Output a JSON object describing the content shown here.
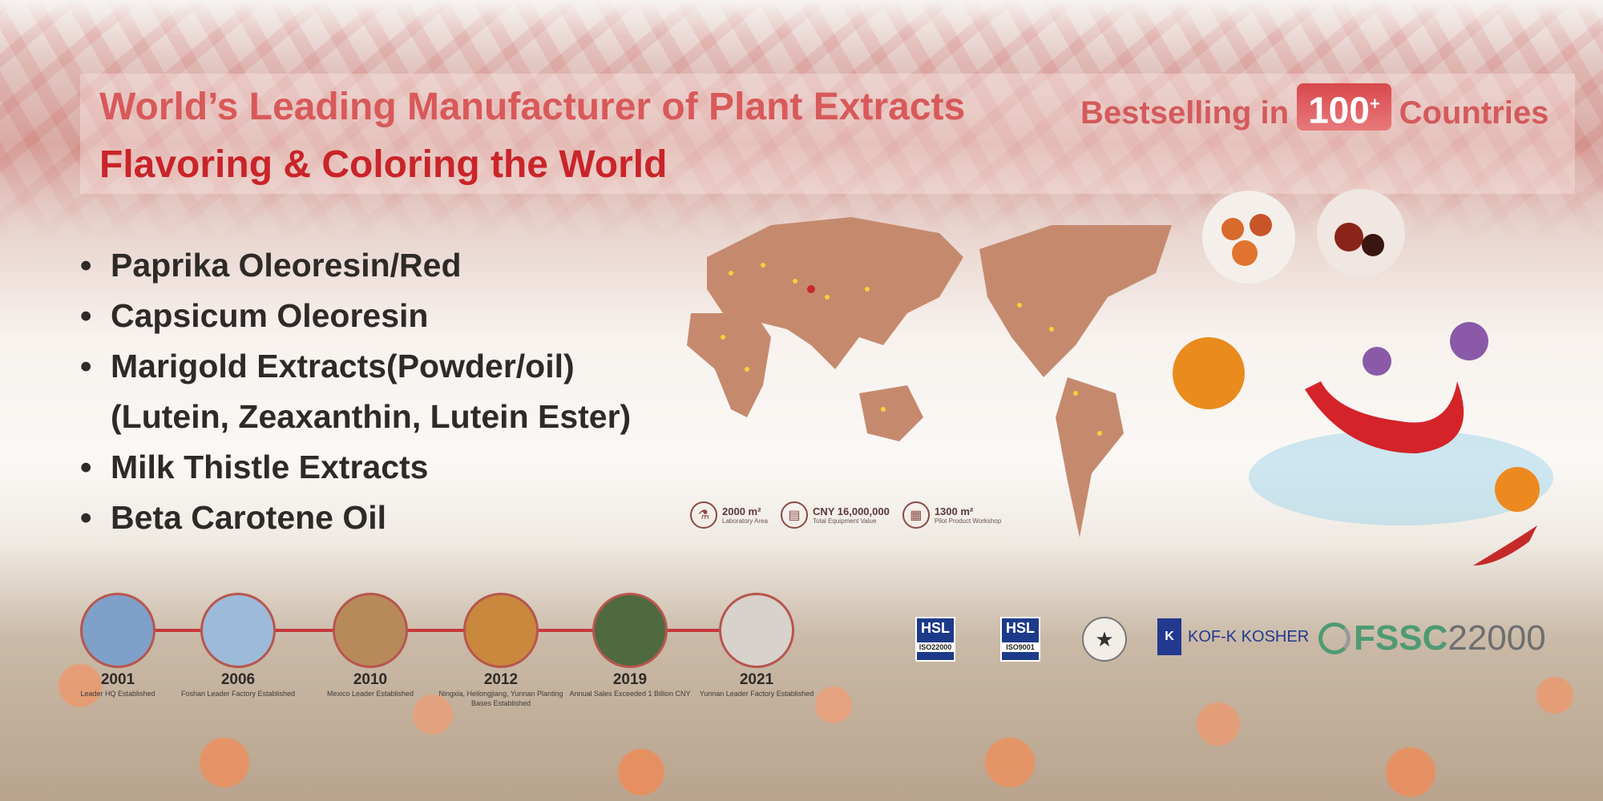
{
  "headline": {
    "line1": "World’s Leading Manufacturer of Plant Extracts",
    "line2": "Flavoring & Coloring the World",
    "bestselling_prefix": "Bestselling in",
    "count": "100",
    "count_sup": "+",
    "bestselling_suffix": "Countries"
  },
  "products": [
    {
      "text": "Paprika Oleoresin/Red",
      "bullet": true
    },
    {
      "text": "Capsicum Oleoresin",
      "bullet": true
    },
    {
      "text": "Marigold Extracts(Powder/oil)",
      "bullet": true
    },
    {
      "text": "(Lutein, Zeaxanthin, Lutein Ester)",
      "bullet": false
    },
    {
      "text": "Milk Thistle Extracts",
      "bullet": true
    },
    {
      "text": "Beta Carotene Oil",
      "bullet": true
    }
  ],
  "stats": [
    {
      "value": "2000 m²",
      "label": "Laboratory Area",
      "icon": "flask-icon"
    },
    {
      "value": "CNY 16,000,000",
      "label": "Total Equipment Value",
      "icon": "equipment-icon"
    },
    {
      "value": "1300 m²",
      "label": "Pilot Product Workshop",
      "icon": "factory-icon"
    }
  ],
  "timeline": [
    {
      "year": "2001",
      "caption": "Leader HQ Established",
      "color": "#7fa0c8"
    },
    {
      "year": "2006",
      "caption": "Foshan Leader Factory Established",
      "color": "#9dbbd8"
    },
    {
      "year": "2010",
      "caption": "Mexico Leader Established",
      "color": "#b88a5a"
    },
    {
      "year": "2012",
      "caption": "Ningxia, Heilongjiang, Yunnan Planting Bases Established",
      "color": "#c9883e"
    },
    {
      "year": "2019",
      "caption": "Annual Sales Exceeded 1 Billion CNY",
      "color": "#4f6a3e"
    },
    {
      "year": "2021",
      "caption": "Yunnan Leader Factory Established",
      "color": "#d8d2cc"
    }
  ],
  "certifications": {
    "hsl1": "HSL",
    "iso1": "ISO22000",
    "hsl2": "HSL",
    "iso2": "ISO9001",
    "kosher": "KOF-K KOSHER",
    "kosher_mark": "K",
    "fssc": "FSSC",
    "fssc_num": "22000"
  },
  "colors": {
    "title_red": "#c9242a",
    "map": "#c58a6e",
    "timeline_line": "#c8383c"
  }
}
